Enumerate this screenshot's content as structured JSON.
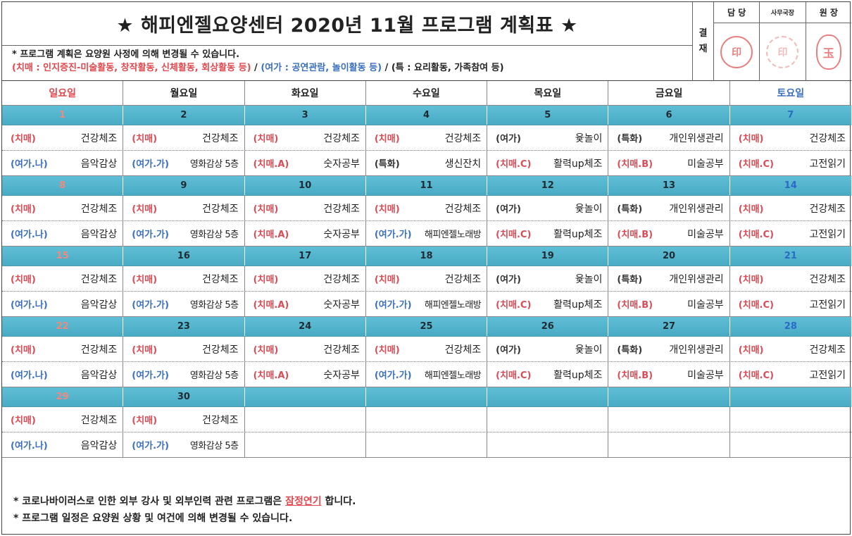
{
  "header": {
    "title": "★ 해피엔젤요양센터 2020년 11월 프로그램 계획표 ★",
    "note1": "* 프로그램 계획은 요양원 사정에 의해 변경될 수 있습니다.",
    "note2_red": "(치매 : 인지증진-미술활동, 창작활동, 신체활동, 회상활동 등)",
    "note2_sep1": " / ",
    "note2_blue": "(여가 : 공연관람, 놀이활동 등)",
    "note2_sep2": " / ",
    "note2_dark": "(특 : 요리활동, 가족참여 등)"
  },
  "approval": {
    "label_top": "결",
    "label_bottom": "재",
    "cols": [
      "담 당",
      "사무국장",
      "원 장"
    ],
    "stamps": [
      "印",
      "印",
      "玉"
    ]
  },
  "days": [
    "일요일",
    "월요일",
    "화요일",
    "수요일",
    "목요일",
    "금요일",
    "토요일"
  ],
  "weeks": [
    {
      "dates": [
        "1",
        "2",
        "3",
        "4",
        "5",
        "6",
        "7"
      ],
      "row1": [
        {
          "tag": "(치매)",
          "act": "건강체조"
        },
        {
          "tag": "(치매)",
          "act": "건강체조"
        },
        {
          "tag": "(치매)",
          "act": "건강체조"
        },
        {
          "tag": "(치매)",
          "act": "건강체조"
        },
        {
          "tag": "(여가)",
          "act": "윷놀이"
        },
        {
          "tag": "(특화)",
          "act": "개인위생관리"
        },
        {
          "tag": "(치매)",
          "act": "건강체조"
        }
      ],
      "row2": [
        {
          "tag": "(여가.나)",
          "act": "음악감상"
        },
        {
          "tag": "(여가.가)",
          "act": "영화감상 5층"
        },
        {
          "tag": "(치매.A)",
          "act": "숫자공부"
        },
        {
          "tag": "(특화)",
          "act": "생신잔치"
        },
        {
          "tag": "(치매.C)",
          "act": "활력up체조"
        },
        {
          "tag": "(치매.B)",
          "act": "미술공부"
        },
        {
          "tag": "(치매.C)",
          "act": "고전읽기"
        }
      ]
    },
    {
      "dates": [
        "8",
        "9",
        "10",
        "11",
        "12",
        "13",
        "14"
      ],
      "row1": [
        {
          "tag": "(치매)",
          "act": "건강체조"
        },
        {
          "tag": "(치매)",
          "act": "건강체조"
        },
        {
          "tag": "(치매)",
          "act": "건강체조"
        },
        {
          "tag": "(치매)",
          "act": "건강체조"
        },
        {
          "tag": "(여가)",
          "act": "윷놀이"
        },
        {
          "tag": "(특화)",
          "act": "개인위생관리"
        },
        {
          "tag": "(치매)",
          "act": "건강체조"
        }
      ],
      "row2": [
        {
          "tag": "(여가.나)",
          "act": "음악감상"
        },
        {
          "tag": "(여가.가)",
          "act": "영화감상 5층"
        },
        {
          "tag": "(치매.A)",
          "act": "숫자공부"
        },
        {
          "tag": "(여가.가)",
          "act": "해피엔젤노래방"
        },
        {
          "tag": "(치매.C)",
          "act": "활력up체조"
        },
        {
          "tag": "(치매.B)",
          "act": "미술공부"
        },
        {
          "tag": "(치매.C)",
          "act": "고전읽기"
        }
      ]
    },
    {
      "dates": [
        "15",
        "16",
        "17",
        "18",
        "19",
        "20",
        "21"
      ],
      "row1": [
        {
          "tag": "(치매)",
          "act": "건강체조"
        },
        {
          "tag": "(치매)",
          "act": "건강체조"
        },
        {
          "tag": "(치매)",
          "act": "건강체조"
        },
        {
          "tag": "(치매)",
          "act": "건강체조"
        },
        {
          "tag": "(여가)",
          "act": "윷놀이"
        },
        {
          "tag": "(특화)",
          "act": "개인위생관리"
        },
        {
          "tag": "(치매)",
          "act": "건강체조"
        }
      ],
      "row2": [
        {
          "tag": "(여가.나)",
          "act": "음악감상"
        },
        {
          "tag": "(여가.가)",
          "act": "영화감상 5층"
        },
        {
          "tag": "(치매.A)",
          "act": "숫자공부"
        },
        {
          "tag": "(여가.가)",
          "act": "해피엔젤노래방"
        },
        {
          "tag": "(치매.C)",
          "act": "활력up체조"
        },
        {
          "tag": "(치매.B)",
          "act": "미술공부"
        },
        {
          "tag": "(치매.C)",
          "act": "고전읽기"
        }
      ]
    },
    {
      "dates": [
        "22",
        "23",
        "24",
        "25",
        "26",
        "27",
        "28"
      ],
      "row1": [
        {
          "tag": "(치매)",
          "act": "건강체조"
        },
        {
          "tag": "(치매)",
          "act": "건강체조"
        },
        {
          "tag": "(치매)",
          "act": "건강체조"
        },
        {
          "tag": "(치매)",
          "act": "건강체조"
        },
        {
          "tag": "(여가)",
          "act": "윷놀이"
        },
        {
          "tag": "(특화)",
          "act": "개인위생관리"
        },
        {
          "tag": "(치매)",
          "act": "건강체조"
        }
      ],
      "row2": [
        {
          "tag": "(여가.나)",
          "act": "음악감상"
        },
        {
          "tag": "(여가.가)",
          "act": "영화감상 5층"
        },
        {
          "tag": "(치매.A)",
          "act": "숫자공부"
        },
        {
          "tag": "(여가.가)",
          "act": "해피엔젤노래방"
        },
        {
          "tag": "(치매.C)",
          "act": "활력up체조"
        },
        {
          "tag": "(치매.B)",
          "act": "미술공부"
        },
        {
          "tag": "(치매.C)",
          "act": "고전읽기"
        }
      ]
    },
    {
      "dates": [
        "29",
        "30",
        "",
        "",
        "",
        "",
        ""
      ],
      "row1": [
        {
          "tag": "(치매)",
          "act": "건강체조"
        },
        {
          "tag": "(치매)",
          "act": "건강체조"
        },
        {
          "tag": "",
          "act": ""
        },
        {
          "tag": "",
          "act": ""
        },
        {
          "tag": "",
          "act": ""
        },
        {
          "tag": "",
          "act": ""
        },
        {
          "tag": "",
          "act": ""
        }
      ],
      "row2": [
        {
          "tag": "(여가.나)",
          "act": "음악감상"
        },
        {
          "tag": "(여가.가)",
          "act": "영화감상 5층"
        },
        {
          "tag": "",
          "act": ""
        },
        {
          "tag": "",
          "act": ""
        },
        {
          "tag": "",
          "act": ""
        },
        {
          "tag": "",
          "act": ""
        },
        {
          "tag": "",
          "act": ""
        }
      ]
    }
  ],
  "footer": {
    "line1_pre": "* 코로나바이러스로 인한 외부 강사 및 외부인력 관련 프로그램은 ",
    "line1_hl": "잠정연기",
    "line1_post": " 합니다.",
    "line2": "* 프로그램 일정은 요양원 상황 및 여건에 의해 변경될 수 있습니다."
  },
  "colors": {
    "accent_red": "#e0484d",
    "accent_blue": "#3a6fc0",
    "date_bar": "#5fbfd6",
    "stamp": "#e36a6a"
  }
}
